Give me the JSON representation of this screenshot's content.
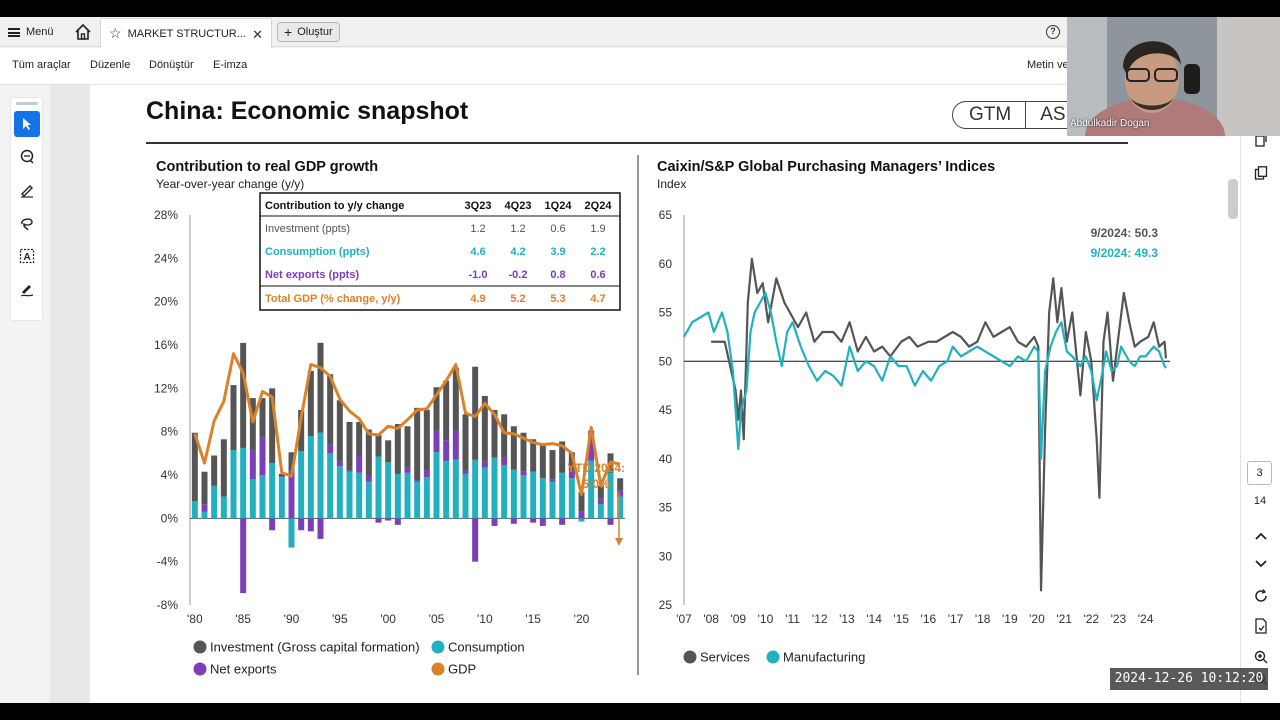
{
  "topbar": {
    "menu_label": "Menü",
    "tab_title": "MARKET STRUCTUR...",
    "create_label": "Oluştur"
  },
  "toolbar": {
    "items": [
      "Tüm araçlar",
      "Düzenle",
      "Dönüştür",
      "E-imza"
    ],
    "right_text": "Metin ve"
  },
  "document": {
    "title": "China: Economic snapshot",
    "logo_left": "GTM",
    "logo_right": "ASIA",
    "left_chart": {
      "title": "Contribution to real GDP growth",
      "subtitle": "Year-over-year change (y/y)"
    },
    "right_chart": {
      "title": "Caixin/S&P Global Purchasing Managers’ Indices",
      "subtitle": "Index"
    }
  },
  "table": {
    "header": [
      "Contribution to y/y change",
      "3Q23",
      "4Q23",
      "1Q24",
      "2Q24"
    ],
    "rows": [
      {
        "label": "Investment (ppts)",
        "values": [
          "1.2",
          "1.2",
          "0.6",
          "1.9"
        ],
        "color": "#555555"
      },
      {
        "label": "Consumption (ppts)",
        "values": [
          "4.6",
          "4.2",
          "3.9",
          "2.2"
        ],
        "color": "#22b0bf"
      },
      {
        "label": "Net exports (ppts)",
        "values": [
          "-1.0",
          "-0.2",
          "0.8",
          "0.6"
        ],
        "color": "#7b3fb8"
      },
      {
        "label": "Total GDP (% change, y/y)",
        "values": [
          "4.9",
          "5.2",
          "5.3",
          "4.7"
        ],
        "color": "#d9822b"
      }
    ]
  },
  "chart_data": [
    {
      "type": "bar",
      "title": "Contribution to real GDP growth",
      "subtitle": "Year-over-year change (y/y)",
      "ylim": [
        -8,
        28
      ],
      "yticks": [
        "28%",
        "24%",
        "20%",
        "16%",
        "12%",
        "8%",
        "4%",
        "0%",
        "-4%",
        "-8%"
      ],
      "xticks": [
        "'80",
        "'85",
        "'90",
        "'95",
        "'00",
        "'05",
        "'10",
        "'15",
        "'20"
      ],
      "x": [
        1980,
        1981,
        1982,
        1983,
        1984,
        1985,
        1986,
        1987,
        1988,
        1989,
        1990,
        1991,
        1992,
        1993,
        1994,
        1995,
        1996,
        1997,
        1998,
        1999,
        2000,
        2001,
        2002,
        2003,
        2004,
        2005,
        2006,
        2007,
        2008,
        2009,
        2010,
        2011,
        2012,
        2013,
        2014,
        2015,
        2016,
        2017,
        2018,
        2019,
        2020,
        2021,
        2022,
        2023,
        2024
      ],
      "series": [
        {
          "name": "Investment (Gross capital formation)",
          "color": "#555555",
          "values": [
            6.3,
            3.0,
            2.8,
            5.3,
            6.0,
            9.7,
            4.8,
            3.6,
            6.9,
            0.2,
            1.8,
            3.8,
            6.0,
            8.3,
            6.5,
            5.6,
            4.5,
            3.1,
            4.2,
            2.0,
            2.0,
            4.6,
            3.8,
            6.7,
            5.6,
            4.0,
            5.5,
            5.8,
            5.2,
            8.6,
            6.0,
            4.4,
            4.0,
            4.0,
            3.6,
            3.0,
            3.1,
            2.7,
            2.9,
            1.7,
            1.8,
            1.0,
            1.2,
            1.8,
            1.1
          ]
        },
        {
          "name": "Consumption",
          "color": "#22b0bf",
          "values": [
            1.6,
            0.6,
            3.0,
            2.0,
            6.3,
            6.5,
            3.6,
            4.0,
            5.1,
            3.8,
            -2.7,
            6.2,
            7.6,
            7.9,
            6.0,
            4.8,
            4.3,
            4.2,
            3.4,
            5.7,
            5.2,
            4.1,
            4.2,
            3.4,
            3.8,
            6.1,
            5.3,
            5.4,
            4.1,
            5.4,
            4.7,
            5.6,
            4.9,
            4.5,
            4.0,
            4.3,
            3.7,
            3.4,
            4.2,
            3.7,
            -0.3,
            5.3,
            1.3,
            4.2,
            2.0
          ]
        },
        {
          "name": "Net exports",
          "color": "#7b3fb8",
          "values": [
            0.0,
            0.7,
            0.0,
            0.0,
            0.0,
            -6.9,
            2.7,
            3.5,
            -1.1,
            0.1,
            4.3,
            -1.1,
            -1.2,
            -1.9,
            0.8,
            0.5,
            0.1,
            1.6,
            0.6,
            -0.4,
            -0.2,
            -0.6,
            0.5,
            0.1,
            0.6,
            2.0,
            1.9,
            2.7,
            0.3,
            -4.0,
            0.6,
            -0.7,
            0.7,
            -0.5,
            0.3,
            -0.4,
            -0.7,
            0.2,
            -0.6,
            0.7,
            0.6,
            1.8,
            0.5,
            -0.6,
            0.6
          ]
        },
        {
          "name": "GDP",
          "color": "#d9822b",
          "type": "line",
          "values": [
            7.8,
            5.1,
            9.0,
            10.8,
            15.2,
            13.4,
            8.9,
            11.7,
            11.2,
            4.2,
            3.9,
            9.3,
            14.2,
            13.9,
            13.1,
            11.0,
            9.9,
            9.2,
            7.8,
            7.7,
            8.5,
            8.3,
            9.1,
            10.0,
            10.1,
            11.4,
            12.7,
            14.2,
            9.7,
            9.4,
            10.6,
            9.6,
            7.9,
            7.8,
            7.4,
            7.0,
            6.8,
            6.9,
            6.7,
            6.0,
            2.2,
            8.4,
            3.0,
            5.2,
            5.0
          ]
        }
      ],
      "annotation": {
        "label": "YTD 2024:",
        "value": "5.0%"
      },
      "legend": {
        "placement": "bottom"
      }
    },
    {
      "type": "line",
      "title": "Caixin/S&P Global Purchasing Managers’ Indices",
      "ylabel": "Index",
      "ylim": [
        25,
        65
      ],
      "yticks": [
        "65",
        "60",
        "55",
        "50",
        "45",
        "40",
        "35",
        "30",
        "25"
      ],
      "xticks": [
        "'07",
        "'08",
        "'09",
        "'10",
        "'11",
        "'12",
        "'13",
        "'14",
        "'15",
        "'16",
        "'17",
        "'18",
        "'19",
        "'20",
        "'21",
        "'22",
        "'23",
        "'24"
      ],
      "reference_line": 50,
      "annotations": [
        {
          "label": "9/2024: 50.3",
          "color": "#555555"
        },
        {
          "label": "9/2024: 49.3",
          "color": "#22b0bf"
        }
      ],
      "series": [
        {
          "name": "Services",
          "color": "#555555",
          "points": [
            [
              2008.0,
              52
            ],
            [
              2008.5,
              52
            ],
            [
              2008.9,
              47
            ],
            [
              2009.0,
              44
            ],
            [
              2009.1,
              47
            ],
            [
              2009.2,
              42
            ],
            [
              2009.35,
              56
            ],
            [
              2009.5,
              60.5
            ],
            [
              2009.7,
              57
            ],
            [
              2009.9,
              58
            ],
            [
              2010.1,
              54
            ],
            [
              2010.4,
              58.5
            ],
            [
              2010.7,
              56
            ],
            [
              2010.9,
              55
            ],
            [
              2011.2,
              53.5
            ],
            [
              2011.5,
              55
            ],
            [
              2011.8,
              52
            ],
            [
              2012.1,
              53
            ],
            [
              2012.5,
              53
            ],
            [
              2012.8,
              52
            ],
            [
              2013.1,
              54
            ],
            [
              2013.4,
              51
            ],
            [
              2013.7,
              52.5
            ],
            [
              2014.0,
              51
            ],
            [
              2014.3,
              51.5
            ],
            [
              2014.6,
              50.5
            ],
            [
              2015.0,
              52
            ],
            [
              2015.3,
              52.5
            ],
            [
              2015.6,
              51.5
            ],
            [
              2016.0,
              52
            ],
            [
              2016.3,
              52
            ],
            [
              2016.6,
              52.5
            ],
            [
              2016.9,
              53
            ],
            [
              2017.2,
              52.5
            ],
            [
              2017.5,
              51.5
            ],
            [
              2017.8,
              52
            ],
            [
              2018.1,
              54
            ],
            [
              2018.4,
              52.5
            ],
            [
              2018.7,
              53
            ],
            [
              2019.0,
              53.5
            ],
            [
              2019.3,
              52
            ],
            [
              2019.6,
              51.5
            ],
            [
              2019.9,
              52.5
            ],
            [
              2020.05,
              51.5
            ],
            [
              2020.15,
              26.5
            ],
            [
              2020.3,
              43
            ],
            [
              2020.45,
              55
            ],
            [
              2020.6,
              58.5
            ],
            [
              2020.75,
              54
            ],
            [
              2020.9,
              57.5
            ],
            [
              2021.1,
              52
            ],
            [
              2021.3,
              55
            ],
            [
              2021.6,
              46.5
            ],
            [
              2021.8,
              53
            ],
            [
              2022.0,
              50
            ],
            [
              2022.2,
              42
            ],
            [
              2022.3,
              36
            ],
            [
              2022.45,
              52
            ],
            [
              2022.6,
              55
            ],
            [
              2022.8,
              48
            ],
            [
              2023.0,
              52.5
            ],
            [
              2023.2,
              57
            ],
            [
              2023.4,
              54
            ],
            [
              2023.6,
              51.5
            ],
            [
              2023.8,
              52
            ],
            [
              2024.1,
              52.5
            ],
            [
              2024.3,
              54
            ],
            [
              2024.5,
              51.5
            ],
            [
              2024.7,
              52
            ],
            [
              2024.75,
              50.3
            ]
          ]
        },
        {
          "name": "Manufacturing",
          "color": "#22b0bf",
          "points": [
            [
              2007.0,
              52.5
            ],
            [
              2007.3,
              54
            ],
            [
              2007.6,
              54.5
            ],
            [
              2007.9,
              55
            ],
            [
              2008.1,
              53
            ],
            [
              2008.4,
              55
            ],
            [
              2008.6,
              53
            ],
            [
              2008.8,
              49
            ],
            [
              2008.9,
              45
            ],
            [
              2009.0,
              41
            ],
            [
              2009.1,
              45
            ],
            [
              2009.3,
              47
            ],
            [
              2009.45,
              53
            ],
            [
              2009.6,
              55
            ],
            [
              2009.8,
              56
            ],
            [
              2010.0,
              57
            ],
            [
              2010.2,
              55
            ],
            [
              2010.4,
              52
            ],
            [
              2010.6,
              49.5
            ],
            [
              2010.8,
              53
            ],
            [
              2011.0,
              54
            ],
            [
              2011.3,
              51.5
            ],
            [
              2011.6,
              49.5
            ],
            [
              2011.9,
              48
            ],
            [
              2012.2,
              49
            ],
            [
              2012.5,
              48.5
            ],
            [
              2012.8,
              47.5
            ],
            [
              2013.1,
              51.5
            ],
            [
              2013.4,
              49
            ],
            [
              2013.7,
              50
            ],
            [
              2014.0,
              49.5
            ],
            [
              2014.3,
              48
            ],
            [
              2014.6,
              50.5
            ],
            [
              2014.9,
              49.5
            ],
            [
              2015.2,
              49.5
            ],
            [
              2015.5,
              47.5
            ],
            [
              2015.8,
              49
            ],
            [
              2016.1,
              48
            ],
            [
              2016.4,
              49.5
            ],
            [
              2016.7,
              50
            ],
            [
              2016.9,
              51.5
            ],
            [
              2017.2,
              50.5
            ],
            [
              2017.5,
              51
            ],
            [
              2017.8,
              51.5
            ],
            [
              2018.1,
              51
            ],
            [
              2018.4,
              50.5
            ],
            [
              2018.7,
              50
            ],
            [
              2019.0,
              49.5
            ],
            [
              2019.3,
              50.5
            ],
            [
              2019.6,
              50
            ],
            [
              2019.9,
              51.5
            ],
            [
              2020.05,
              51
            ],
            [
              2020.15,
              40
            ],
            [
              2020.3,
              49
            ],
            [
              2020.5,
              51.5
            ],
            [
              2020.7,
              53
            ],
            [
              2020.9,
              54
            ],
            [
              2021.1,
              51
            ],
            [
              2021.3,
              50.5
            ],
            [
              2021.6,
              49.5
            ],
            [
              2021.8,
              50.5
            ],
            [
              2022.0,
              49
            ],
            [
              2022.2,
              46
            ],
            [
              2022.35,
              48
            ],
            [
              2022.55,
              51
            ],
            [
              2022.75,
              49
            ],
            [
              2022.95,
              49.5
            ],
            [
              2023.1,
              51.5
            ],
            [
              2023.4,
              50
            ],
            [
              2023.6,
              49.5
            ],
            [
              2023.8,
              50.5
            ],
            [
              2024.0,
              50.5
            ],
            [
              2024.3,
              51.5
            ],
            [
              2024.5,
              51
            ],
            [
              2024.7,
              49.5
            ],
            [
              2024.75,
              49.3
            ]
          ]
        }
      ],
      "legend": {
        "placement": "bottom"
      }
    }
  ],
  "legend_left": {
    "investment": "Investment (Gross capital formation)",
    "consumption": "Consumption",
    "net_exports": "Net exports",
    "gdp": "GDP"
  },
  "legend_right": {
    "services": "Services",
    "manufacturing": "Manufacturing"
  },
  "viewer": {
    "current_page": "3",
    "total_pages": "14"
  },
  "webcam": {
    "name": "Abdulkadir Dogan"
  },
  "timestamp": "2024-12-26 10:12:20",
  "colors": {
    "investment": "#555555",
    "consumption": "#22b0bf",
    "net_exports": "#7b3fb8",
    "gdp": "#d9822b",
    "accent": "#1473e6"
  },
  "icons": [
    "menu-icon",
    "home-icon",
    "star-icon",
    "close-icon",
    "plus-icon",
    "help-icon",
    "select-icon",
    "comment-icon",
    "draw-icon",
    "lasso-icon",
    "text-select-icon",
    "sign-icon",
    "zoom-in-icon",
    "zoom-out-icon",
    "refresh-icon",
    "chevron-up-icon",
    "chevron-down-icon"
  ]
}
